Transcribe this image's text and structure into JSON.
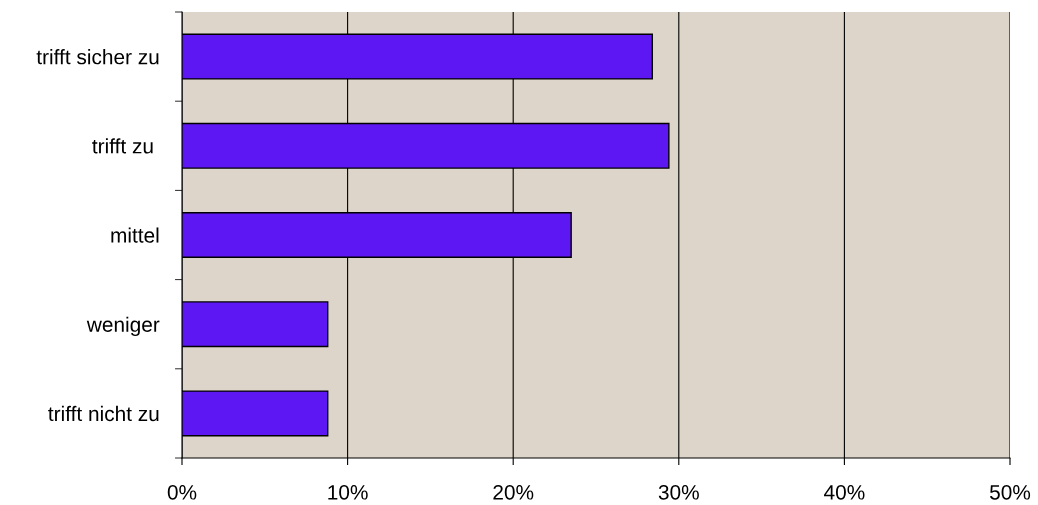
{
  "chart_data": {
    "type": "bar",
    "orientation": "horizontal",
    "categories": [
      "trifft sicher zu",
      "trifft zu ",
      "mittel",
      "weniger",
      "trifft nicht zu"
    ],
    "values": [
      28.4,
      29.4,
      23.5,
      8.8,
      8.8
    ],
    "color": "#5c17f2",
    "xlim": [
      0,
      50
    ],
    "xticks": [
      {
        "value": 0,
        "label": "0%"
      },
      {
        "value": 10,
        "label": "10%"
      },
      {
        "value": 20,
        "label": "20%"
      },
      {
        "value": 30,
        "label": "30%"
      },
      {
        "value": 40,
        "label": "40%"
      },
      {
        "value": 50,
        "label": "50%"
      }
    ],
    "grid": "x",
    "legend": false
  }
}
